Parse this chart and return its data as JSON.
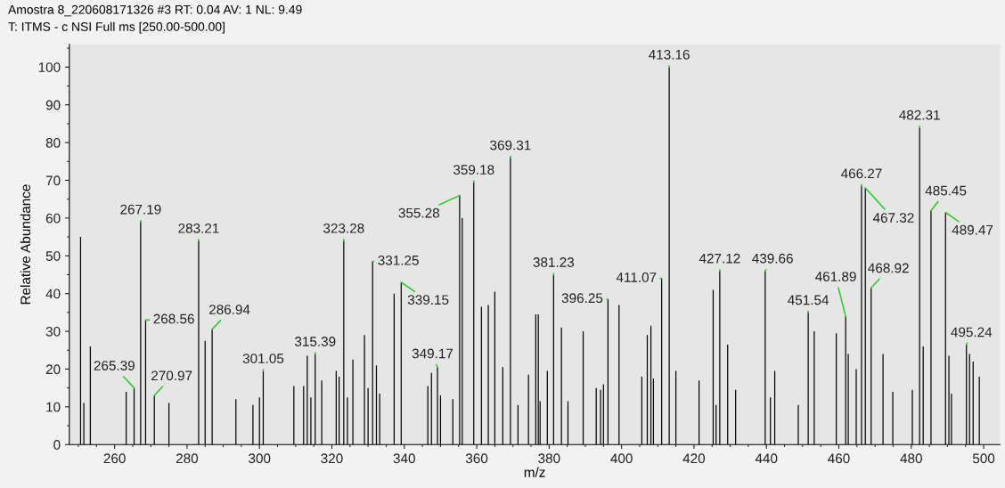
{
  "chart_data": {
    "type": "bar",
    "title": "Amostra 8_220608171326 #3 RT: 0.04 AV: 1 NL: 9.49",
    "subtitle": "T: ITMS - c NSI Full ms [250.00-500.00]",
    "xlabel": "m/z",
    "ylabel": "Relative Abundance",
    "color": "#000000",
    "x": [
      250.6,
      251.5,
      253.3,
      263.2,
      265.39,
      267.19,
      268.56,
      270.97,
      275.0,
      283.21,
      285.0,
      286.94,
      293.5,
      298.2,
      300.0,
      301.05,
      309.5,
      312.2,
      313.2,
      314.2,
      315.39,
      317.2,
      321.2,
      322.0,
      323.28,
      324.3,
      325.8,
      329.0,
      330.0,
      331.25,
      332.3,
      333.2,
      337.2,
      339.15,
      346.5,
      347.5,
      349.17,
      350.0,
      353.4,
      355.28,
      356.0,
      359.18,
      361.3,
      363.2,
      365.0,
      367.2,
      369.31,
      371.4,
      374.3,
      376.3,
      377.0,
      377.5,
      379.5,
      381.23,
      383.4,
      385.2,
      389.4,
      393.0,
      394.2,
      395.0,
      396.25,
      399.3,
      405.6,
      407.1,
      408.1,
      408.8,
      411.07,
      413.16,
      415.0,
      421.4,
      425.3,
      426.1,
      427.12,
      429.3,
      431.5,
      439.66,
      441.1,
      442.3,
      448.8,
      451.54,
      453.2,
      459.3,
      461.89,
      462.6,
      464.8,
      466.27,
      467.32,
      468.92,
      472.2,
      474.9,
      480.3,
      482.31,
      483.3,
      485.45,
      489.47,
      490.4,
      491.1,
      495.24,
      496.1,
      497.1,
      498.8
    ],
    "values": [
      55,
      11,
      26,
      14,
      15,
      59,
      33,
      13,
      11,
      54,
      27.5,
      30.5,
      12,
      10.5,
      12.5,
      19.5,
      15.5,
      15.5,
      23.5,
      12.5,
      24,
      17,
      19.5,
      18,
      54,
      12.5,
      22.5,
      29,
      15,
      48.5,
      21,
      13.5,
      40,
      43,
      15.5,
      19,
      20.5,
      13,
      12,
      66,
      60,
      69.5,
      36.5,
      37,
      40.5,
      20.5,
      76,
      10.5,
      18.5,
      34.5,
      34.5,
      11.5,
      19.5,
      45,
      31,
      11.5,
      30,
      15,
      14.5,
      16,
      38.5,
      37,
      18,
      29,
      31.5,
      17.5,
      44,
      100,
      19.5,
      17,
      41,
      10.5,
      46,
      26.5,
      14.5,
      46,
      12.5,
      19.5,
      10.5,
      35,
      30,
      29.5,
      34,
      24,
      20,
      68.5,
      68,
      41.5,
      24,
      14,
      14.5,
      84,
      26,
      62,
      61.5,
      23.5,
      13.5,
      26.5,
      24,
      22,
      18
    ],
    "xlim": [
      247.5,
      504.5
    ],
    "ylim": [
      0,
      106
    ],
    "xticks": [
      260,
      280,
      300,
      320,
      340,
      360,
      380,
      400,
      420,
      440,
      460,
      480,
      500
    ],
    "yticks": [
      0,
      10,
      20,
      30,
      40,
      50,
      60,
      70,
      80,
      90,
      100
    ],
    "grid": false,
    "annotations": [
      {
        "text": "265.39",
        "x": 265.39,
        "y": 15
      },
      {
        "text": "267.19",
        "x": 267.19,
        "y": 59
      },
      {
        "text": "268.56",
        "x": 268.56,
        "y": 33
      },
      {
        "text": "270.97",
        "x": 270.97,
        "y": 13
      },
      {
        "text": "283.21",
        "x": 283.21,
        "y": 54
      },
      {
        "text": "286.94",
        "x": 286.94,
        "y": 30.5
      },
      {
        "text": "301.05",
        "x": 301.05,
        "y": 19.5
      },
      {
        "text": "315.39",
        "x": 315.39,
        "y": 24
      },
      {
        "text": "323.28",
        "x": 323.28,
        "y": 54
      },
      {
        "text": "331.25",
        "x": 331.25,
        "y": 48.5
      },
      {
        "text": "339.15",
        "x": 339.15,
        "y": 43
      },
      {
        "text": "349.17",
        "x": 349.17,
        "y": 20.5
      },
      {
        "text": "355.28",
        "x": 355.28,
        "y": 66
      },
      {
        "text": "359.18",
        "x": 359.18,
        "y": 69.5
      },
      {
        "text": "369.31",
        "x": 369.31,
        "y": 76
      },
      {
        "text": "381.23",
        "x": 381.23,
        "y": 45
      },
      {
        "text": "396.25",
        "x": 396.25,
        "y": 38.5
      },
      {
        "text": "411.07",
        "x": 411.07,
        "y": 44
      },
      {
        "text": "413.16",
        "x": 413.16,
        "y": 100
      },
      {
        "text": "427.12",
        "x": 427.12,
        "y": 46
      },
      {
        "text": "439.66",
        "x": 439.66,
        "y": 46
      },
      {
        "text": "451.54",
        "x": 451.54,
        "y": 35
      },
      {
        "text": "461.89",
        "x": 461.89,
        "y": 34
      },
      {
        "text": "466.27",
        "x": 466.27,
        "y": 68.5
      },
      {
        "text": "467.32",
        "x": 467.32,
        "y": 68
      },
      {
        "text": "468.92",
        "x": 468.92,
        "y": 41.5
      },
      {
        "text": "482.31",
        "x": 482.31,
        "y": 84
      },
      {
        "text": "485.45",
        "x": 485.45,
        "y": 62
      },
      {
        "text": "489.47",
        "x": 489.47,
        "y": 61.5
      },
      {
        "text": "495.24",
        "x": 495.24,
        "y": 26.5
      }
    ]
  }
}
